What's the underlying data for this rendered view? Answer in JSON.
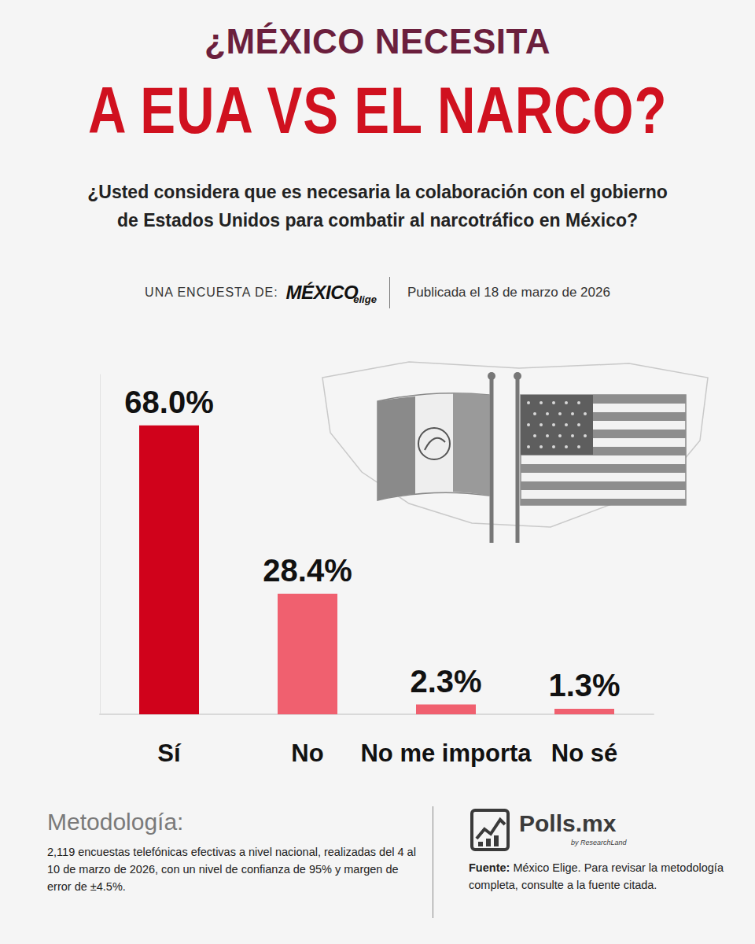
{
  "header": {
    "title_line1": "¿MÉXICO NECESITA",
    "title_line2": "A EUA VS EL NARCO?",
    "question": "¿Usted considera que es necesaria la colaboración con el gobierno de Estados Unidos para combatir al narcotráfico en México?",
    "byline_label": "UNA ENCUESTA DE:",
    "byline_brand": "MÉXICO",
    "byline_brand_sub": "elige",
    "published": "Publicada el 18 de marzo de 2026"
  },
  "chart_data": {
    "type": "bar",
    "categories": [
      "Sí",
      "No",
      "No me importa",
      "No sé"
    ],
    "values": [
      68.0,
      28.4,
      2.3,
      1.3
    ],
    "value_labels": [
      "68.0%",
      "28.4%",
      "2.3%",
      "1.3%"
    ],
    "colors": [
      "#d0021b",
      "#f0606f",
      "#f0606f",
      "#f0606f"
    ],
    "ylim": [
      0,
      80
    ],
    "yticks": [],
    "data_labels": true,
    "tick_labels": "x",
    "grid": false
  },
  "footer": {
    "methodology_title": "Metodología:",
    "methodology_text": "2,119 encuestas telefónicas efectivas a nivel nacional, realizadas del 4 al 10 de marzo de 2026, con un nivel de confianza de 95% y margen de error de ±4.5%.",
    "logo": "Polls.mx",
    "logo_sub": "by ResearchLand",
    "source_label": "Fuente:",
    "source_text": "México Elige. Para revisar la metodología completa, consulte a la fuente citada."
  }
}
